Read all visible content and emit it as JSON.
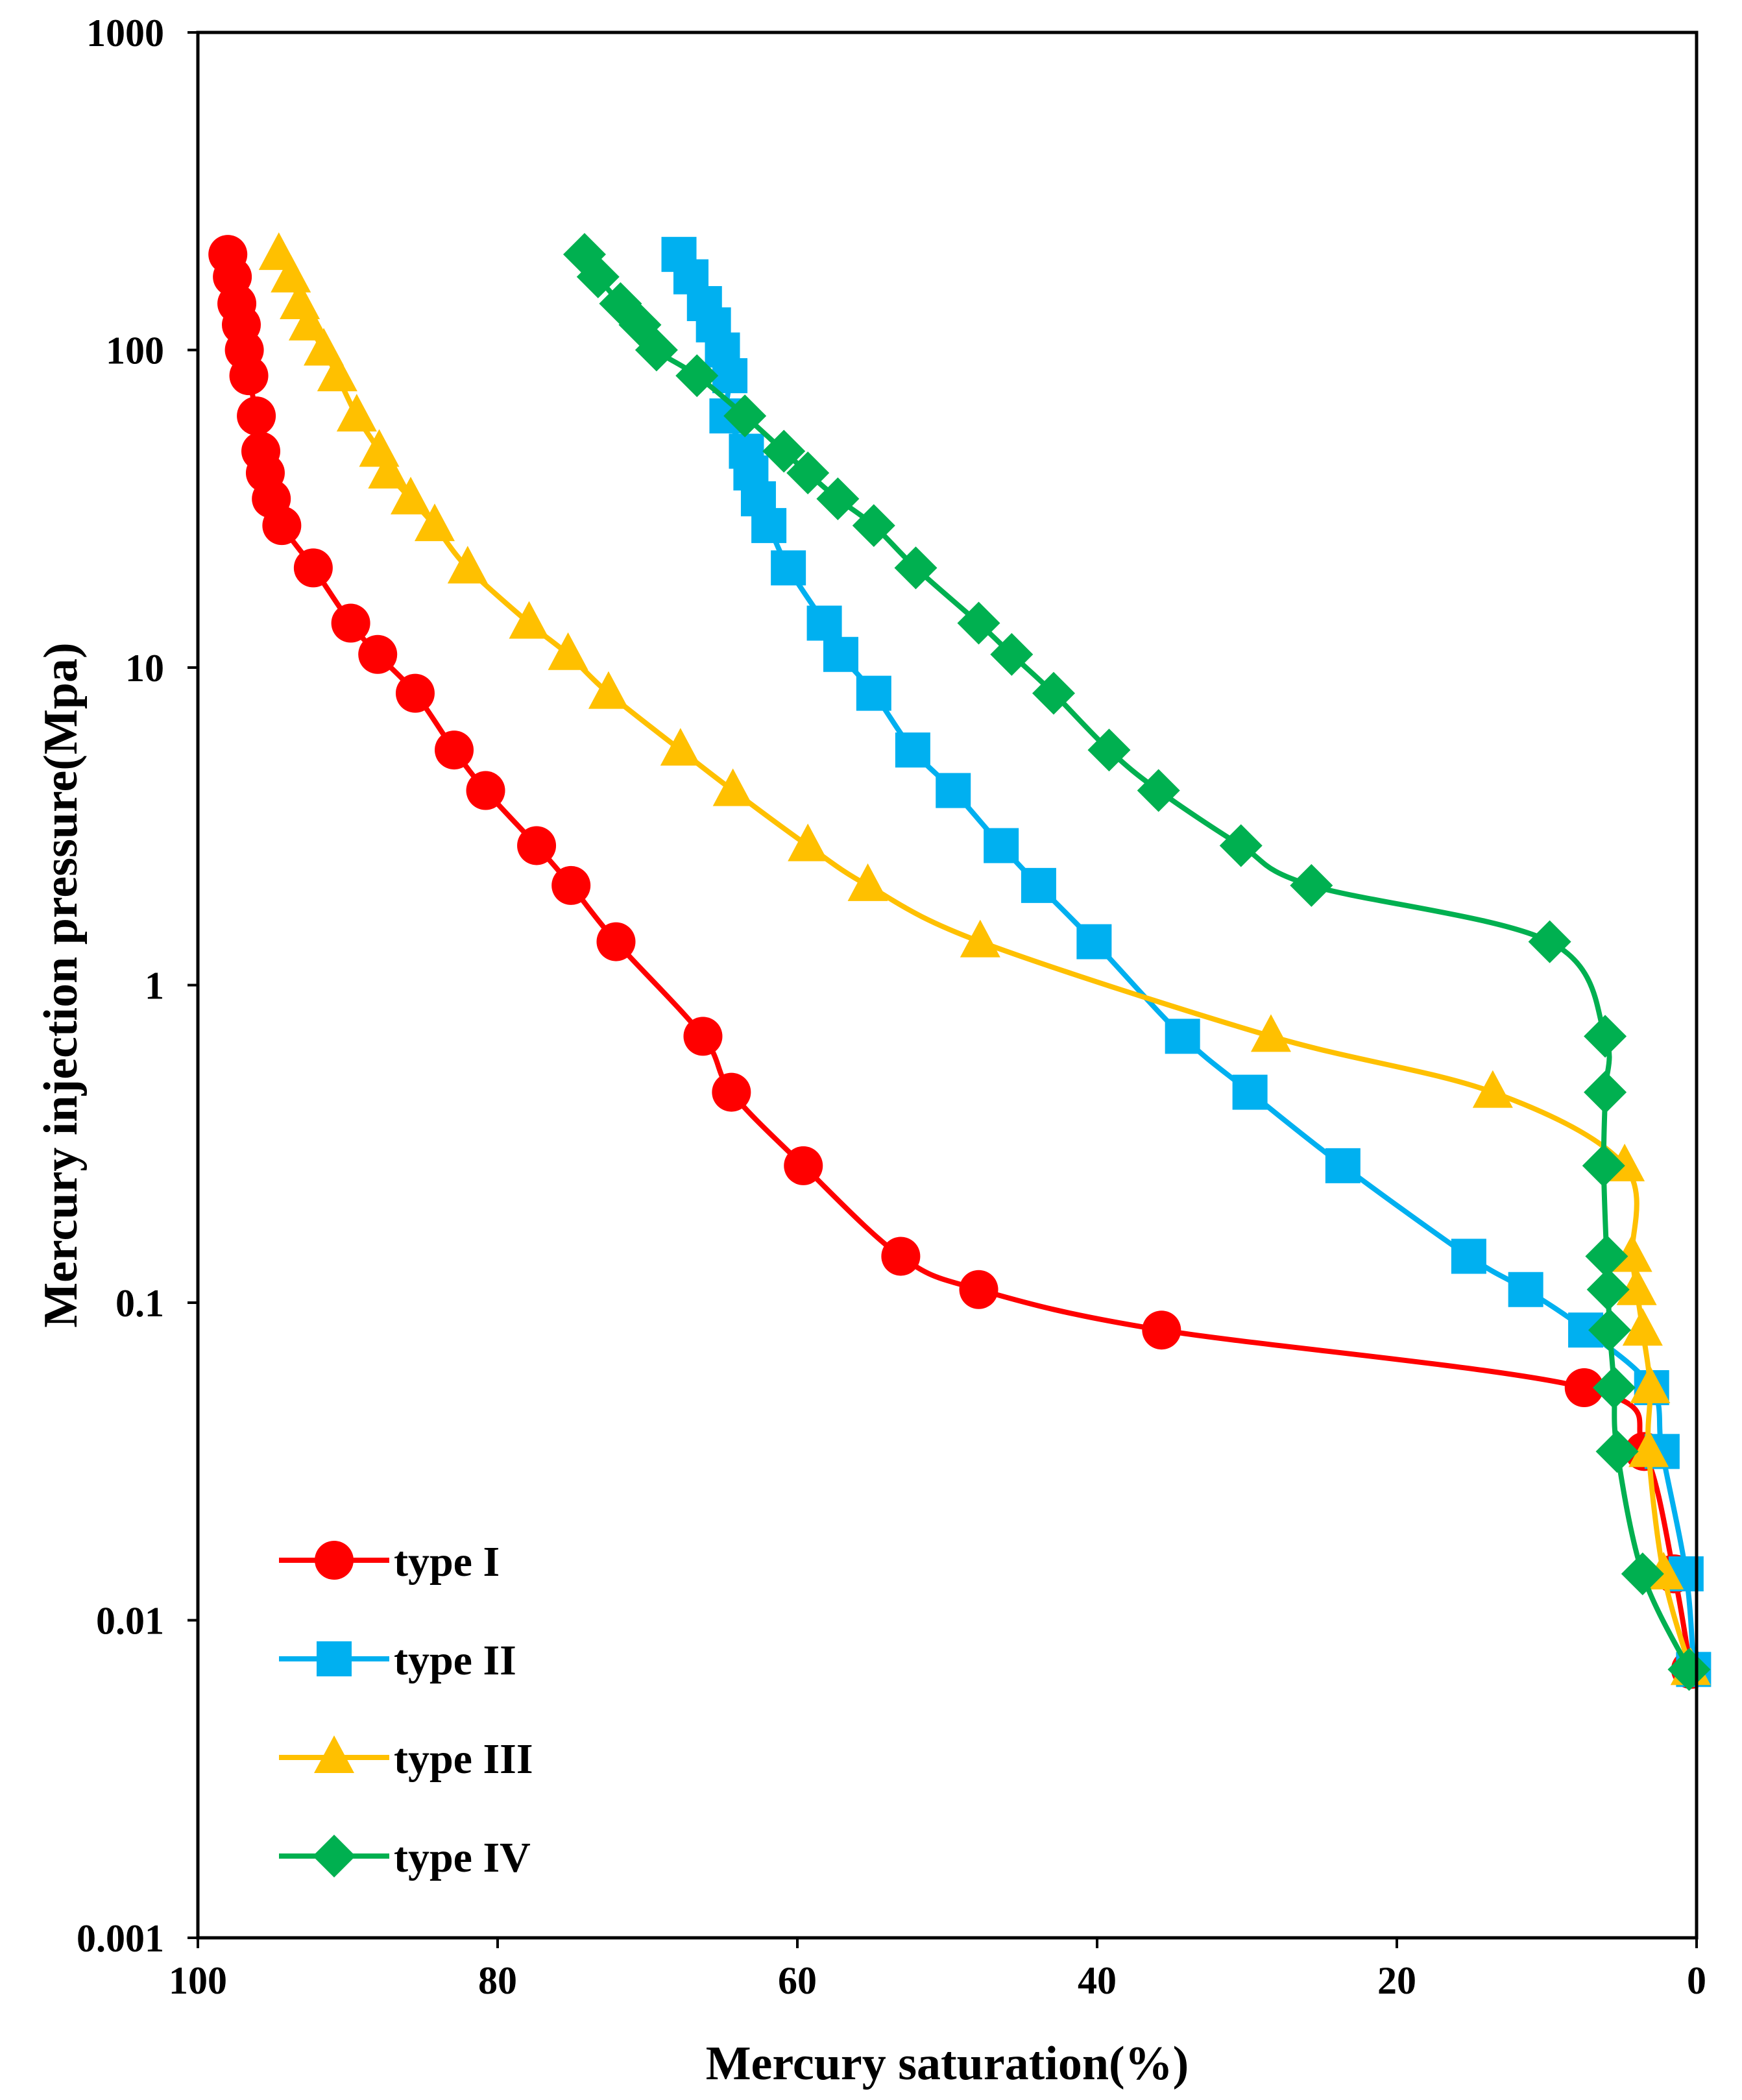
{
  "chart_data": {
    "type": "line",
    "title": "",
    "xlabel": "Mercury saturation(%)",
    "ylabel": "Mercury injection pressure(Mpa)",
    "x_reversed": true,
    "xlim": [
      100,
      0
    ],
    "ylim": [
      0.001,
      1000
    ],
    "y_scale": "log",
    "x_ticks": [
      100,
      80,
      60,
      40,
      20,
      0
    ],
    "x_tick_labels": [
      "100",
      "80",
      "60",
      "40",
      "20",
      "0"
    ],
    "y_ticks": [
      1000,
      100,
      10,
      1,
      0.1,
      0.01,
      0.001
    ],
    "y_tick_labels": [
      "1000",
      "100",
      "10",
      "1",
      "0.1",
      "0.01",
      "0.001"
    ],
    "grid": false,
    "legend_position": "bottom-left",
    "series": [
      {
        "name": "type  I",
        "color": "#ff0000",
        "marker": "circle",
        "points": [
          [
            98.0,
            200
          ],
          [
            97.7,
            170
          ],
          [
            97.4,
            140
          ],
          [
            97.1,
            120
          ],
          [
            96.9,
            100
          ],
          [
            96.6,
            83
          ],
          [
            96.1,
            62
          ],
          [
            95.8,
            48
          ],
          [
            95.5,
            41
          ],
          [
            95.1,
            34
          ],
          [
            94.4,
            28
          ],
          [
            92.3,
            20.6
          ],
          [
            89.8,
            13.8
          ],
          [
            88.0,
            11
          ],
          [
            85.5,
            8.3
          ],
          [
            82.9,
            5.5
          ],
          [
            80.8,
            4.1
          ],
          [
            77.4,
            2.75
          ],
          [
            75.1,
            2.06
          ],
          [
            72.1,
            1.37
          ],
          [
            66.3,
            0.69
          ],
          [
            64.4,
            0.46
          ],
          [
            59.6,
            0.27
          ],
          [
            53.1,
            0.14
          ],
          [
            47.9,
            0.11
          ],
          [
            35.7,
            0.082
          ],
          [
            7.5,
            0.054
          ],
          [
            3.5,
            0.034
          ],
          [
            1.5,
            0.014
          ],
          [
            0.4,
            0.007
          ]
        ]
      },
      {
        "name": "type  II",
        "color": "#00b0f0",
        "marker": "square",
        "points": [
          [
            67.9,
            200
          ],
          [
            67.1,
            170
          ],
          [
            66.2,
            140
          ],
          [
            65.6,
            120
          ],
          [
            65.0,
            100
          ],
          [
            64.5,
            83
          ],
          [
            64.7,
            62
          ],
          [
            63.4,
            48
          ],
          [
            63.1,
            41
          ],
          [
            62.6,
            34
          ],
          [
            61.9,
            28
          ],
          [
            60.6,
            20.6
          ],
          [
            58.2,
            13.8
          ],
          [
            57.1,
            11
          ],
          [
            54.9,
            8.3
          ],
          [
            52.3,
            5.5
          ],
          [
            49.6,
            4.1
          ],
          [
            46.4,
            2.75
          ],
          [
            43.9,
            2.06
          ],
          [
            40.2,
            1.37
          ],
          [
            34.3,
            0.69
          ],
          [
            29.8,
            0.46
          ],
          [
            23.6,
            0.27
          ],
          [
            15.2,
            0.14
          ],
          [
            11.4,
            0.11
          ],
          [
            7.4,
            0.082
          ],
          [
            3.0,
            0.054
          ],
          [
            2.3,
            0.034
          ],
          [
            0.7,
            0.014
          ],
          [
            0.2,
            0.007
          ]
        ]
      },
      {
        "name": "type III",
        "color": "#ffc000",
        "marker": "triangle",
        "points": [
          [
            94.6,
            200
          ],
          [
            93.8,
            170
          ],
          [
            93.2,
            140
          ],
          [
            92.6,
            120
          ],
          [
            91.6,
            100
          ],
          [
            90.7,
            83
          ],
          [
            89.4,
            62
          ],
          [
            87.9,
            48
          ],
          [
            87.3,
            41
          ],
          [
            85.8,
            34
          ],
          [
            84.2,
            28
          ],
          [
            82.0,
            20.6
          ],
          [
            77.9,
            13.8
          ],
          [
            75.3,
            11
          ],
          [
            72.6,
            8.3
          ],
          [
            67.8,
            5.5
          ],
          [
            64.3,
            4.1
          ],
          [
            59.3,
            2.75
          ],
          [
            55.3,
            2.06
          ],
          [
            47.8,
            1.37
          ],
          [
            28.4,
            0.69
          ],
          [
            13.6,
            0.46
          ],
          [
            4.8,
            0.27
          ],
          [
            4.3,
            0.14
          ],
          [
            4.0,
            0.11
          ],
          [
            3.6,
            0.082
          ],
          [
            3.1,
            0.054
          ],
          [
            3.2,
            0.034
          ],
          [
            2.2,
            0.014
          ],
          [
            0.4,
            0.007
          ]
        ]
      },
      {
        "name": "type IV",
        "color": "#00b050",
        "marker": "diamond",
        "points": [
          [
            74.2,
            200
          ],
          [
            73.3,
            170
          ],
          [
            71.8,
            140
          ],
          [
            70.5,
            120
          ],
          [
            69.4,
            100
          ],
          [
            66.7,
            83
          ],
          [
            63.5,
            62
          ],
          [
            60.9,
            48
          ],
          [
            59.3,
            41
          ],
          [
            57.3,
            34
          ],
          [
            54.9,
            28
          ],
          [
            52.1,
            20.6
          ],
          [
            47.9,
            13.8
          ],
          [
            45.7,
            11
          ],
          [
            42.9,
            8.3
          ],
          [
            39.2,
            5.5
          ],
          [
            35.9,
            4.1
          ],
          [
            30.4,
            2.75
          ],
          [
            25.7,
            2.06
          ],
          [
            9.8,
            1.37
          ],
          [
            6.1,
            0.69
          ],
          [
            6.1,
            0.46
          ],
          [
            6.2,
            0.27
          ],
          [
            6.0,
            0.14
          ],
          [
            5.9,
            0.11
          ],
          [
            5.8,
            0.082
          ],
          [
            5.5,
            0.054
          ],
          [
            5.3,
            0.034
          ],
          [
            3.6,
            0.014
          ],
          [
            0.5,
            0.007
          ]
        ]
      }
    ]
  }
}
